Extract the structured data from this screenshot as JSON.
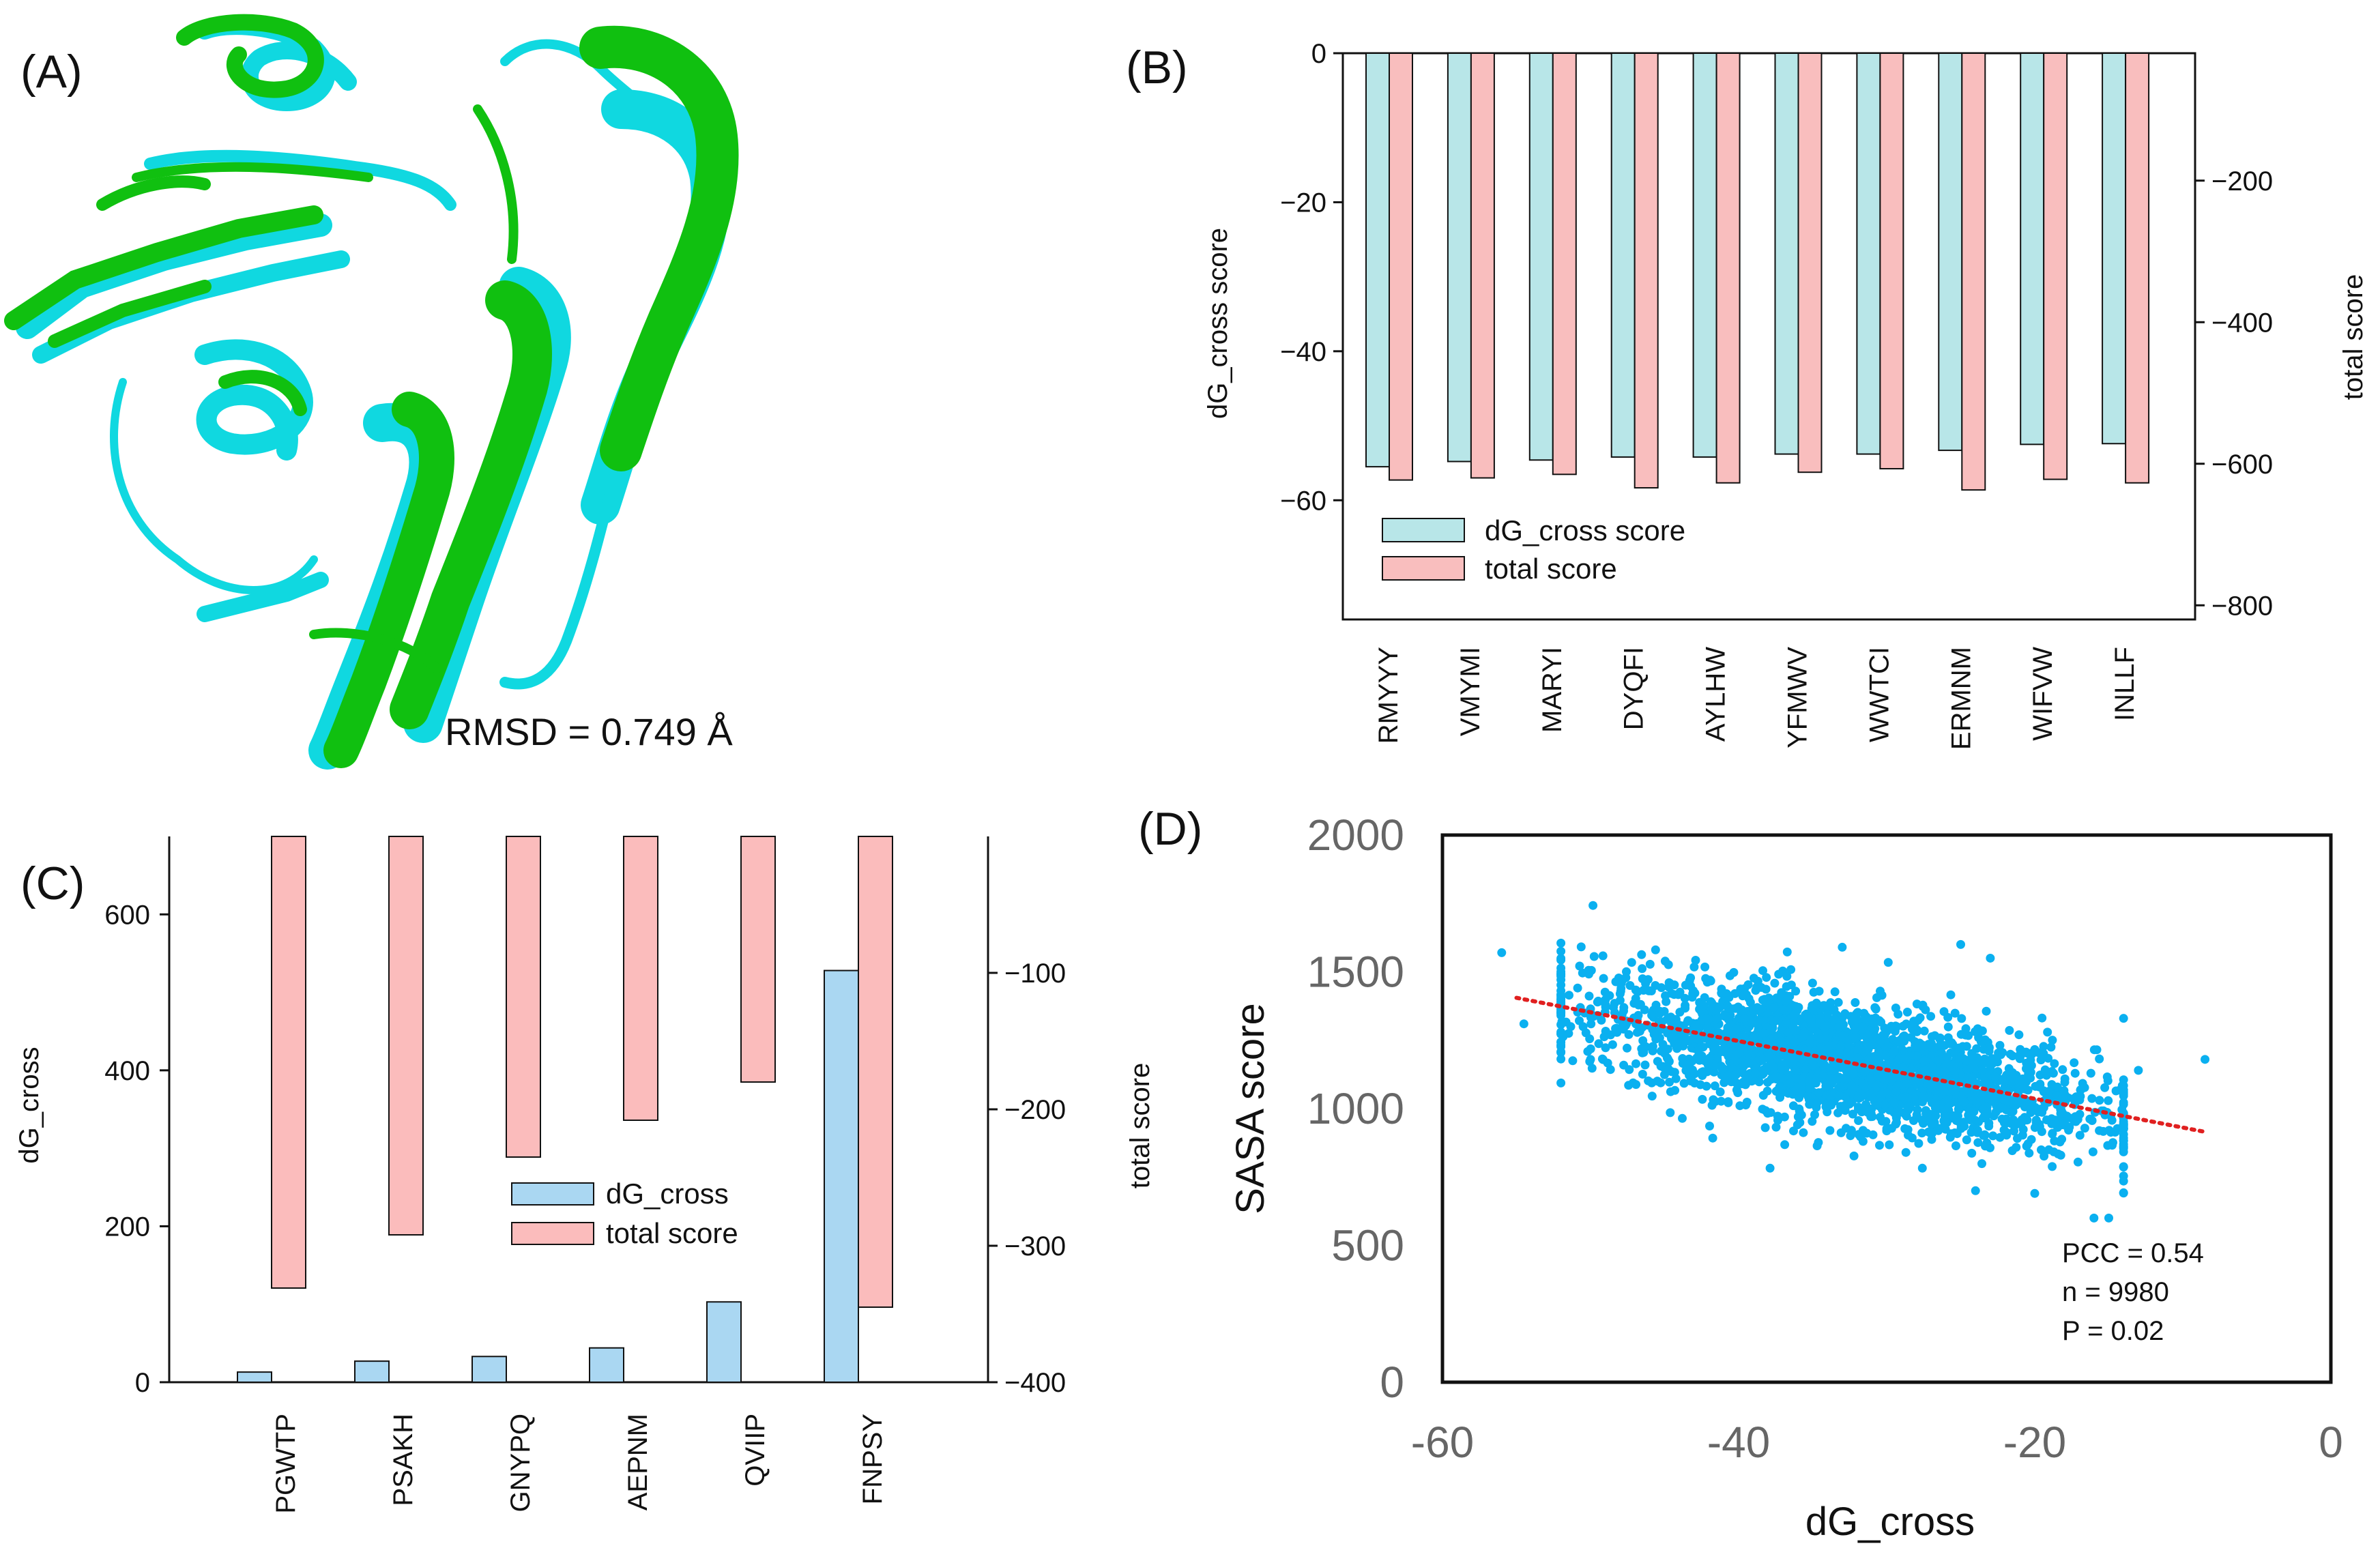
{
  "panels": {
    "a": {
      "label": "(A)",
      "rmsd": "RMSD = 0.749 Å"
    },
    "b": {
      "label": "(B)"
    },
    "c": {
      "label": "(C)"
    },
    "d": {
      "label": "(D)"
    }
  },
  "colors": {
    "structure_green": "#10c010",
    "structure_cyan": "#10d8e0",
    "b_dg_bar": "#b8e6e8",
    "b_total_bar": "#f9bebe",
    "c_dg_bar": "#aad7f2",
    "c_total_bar": "#fbbcbc",
    "scatter_point": "#0ab0f0",
    "trend_line": "#e02020"
  },
  "chart_data": [
    {
      "panel": "B",
      "type": "bar",
      "categories": [
        "RMYYY",
        "VMYMI",
        "MARYI",
        "DYQFI",
        "AYLHW",
        "YFMWV",
        "WWTCI",
        "ERMNM",
        "WIFVW",
        "INLLF"
      ],
      "series": [
        {
          "name": "dG_cross score",
          "axis": "left",
          "values": [
            -55.5,
            -54.8,
            -54.6,
            -54.2,
            -54.2,
            -53.8,
            -53.8,
            -53.3,
            -52.5,
            -52.4
          ]
        },
        {
          "name": "total score",
          "axis": "right",
          "values": [
            -623,
            -620,
            -615,
            -634,
            -627,
            -612,
            -607,
            -637,
            -622,
            -627
          ]
        }
      ],
      "ylabel": "dG_cross score",
      "ylim": [
        -76,
        0
      ],
      "yticks": [
        0,
        -20,
        -40,
        -60
      ],
      "ytick_labels": [
        "0",
        "−20",
        "−40",
        "−60"
      ],
      "y2label": "total score",
      "y2lim": [
        -820,
        -20
      ],
      "y2ticks": [
        -200,
        -400,
        -600,
        -800
      ],
      "y2tick_labels": [
        "−200",
        "−400",
        "−600",
        "−800"
      ],
      "legend": [
        "dG_cross score",
        "total score"
      ],
      "legend_position": "bottom-left"
    },
    {
      "panel": "C",
      "type": "bar",
      "categories": [
        "PGWTP",
        "PSAKH",
        "GNYPQ",
        "AEPNM",
        "QVIIP",
        "FNPSY"
      ],
      "series": [
        {
          "name": "dG_cross",
          "axis": "left",
          "values": [
            13,
            27,
            33,
            44,
            103,
            528
          ]
        },
        {
          "name": "total score",
          "axis": "right",
          "values": [
            -331,
            -292,
            -235,
            -208,
            -180,
            -345
          ]
        }
      ],
      "ylabel": "dG_cross",
      "ylim": [
        0,
        700
      ],
      "yticks": [
        0,
        200,
        400,
        600
      ],
      "ytick_labels": [
        "0",
        "200",
        "400",
        "600"
      ],
      "y2label": "total score",
      "y2lim": [
        -400,
        0
      ],
      "y2ticks": [
        -100,
        -200,
        -300,
        -400
      ],
      "y2tick_labels": [
        "−100",
        "−200",
        "−300",
        "−400"
      ],
      "legend": [
        "dG_cross",
        "total score"
      ],
      "legend_position": "center"
    },
    {
      "panel": "D",
      "type": "scatter",
      "xlabel": "dG_cross",
      "ylabel": "SASA score",
      "xlim": [
        -60,
        0
      ],
      "ylim": [
        0,
        2000
      ],
      "xticks": [
        -60,
        -40,
        -20,
        0
      ],
      "xtick_labels": [
        "-60",
        "-40",
        "-20",
        "0"
      ],
      "yticks": [
        0,
        500,
        1000,
        1500,
        2000
      ],
      "ytick_labels": [
        "0",
        "500",
        "1000",
        "1500",
        "2000"
      ],
      "trend_line": {
        "x": [
          -55,
          -8.5
        ],
        "y": [
          1405,
          915
        ]
      },
      "points_summary": {
        "n": 9980,
        "x_mean": -33,
        "x_sd": 8.5,
        "y_mean": 1175,
        "y_sd": 140,
        "x_min": -56,
        "x_max": -8.5
      },
      "sample_points": [
        {
          "x": -56,
          "y": 1570
        },
        {
          "x": -54.5,
          "y": 1310
        },
        {
          "x": -52,
          "y": 1280
        },
        {
          "x": -50,
          "y": 1180
        },
        {
          "x": -48,
          "y": 1420
        },
        {
          "x": -33,
          "y": 1590
        },
        {
          "x": -25,
          "y": 1600
        },
        {
          "x": -23,
          "y": 1550
        },
        {
          "x": -14,
          "y": 1330
        },
        {
          "x": -13,
          "y": 1140
        },
        {
          "x": -8.5,
          "y": 1180
        },
        {
          "x": -20,
          "y": 690
        },
        {
          "x": -24,
          "y": 700
        },
        {
          "x": -16,
          "y": 600
        },
        {
          "x": -15,
          "y": 600
        }
      ],
      "stats": [
        "PCC = 0.54",
        "n = 9980",
        "P = 0.02"
      ]
    }
  ]
}
